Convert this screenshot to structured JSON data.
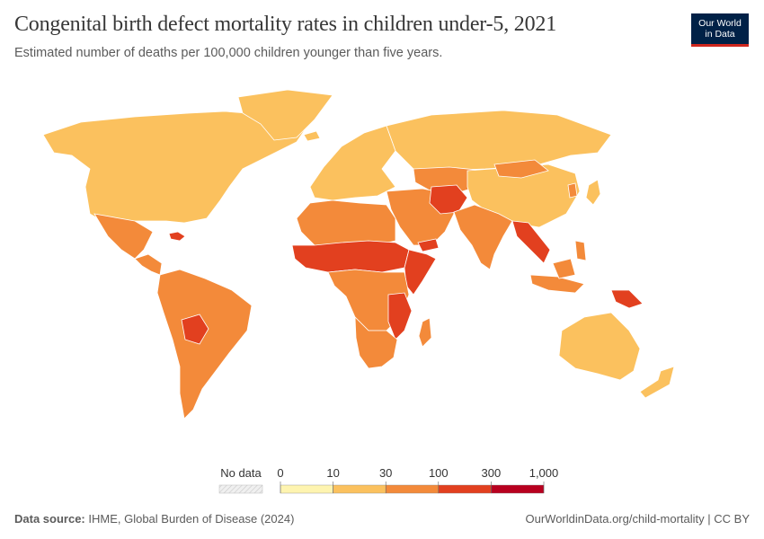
{
  "header": {
    "title": "Congenital birth defect mortality rates in children under-5, 2021",
    "subtitle": "Estimated number of deaths per 100,000 children younger than five years."
  },
  "logo": {
    "line1": "Our World",
    "line2": "in Data"
  },
  "legend": {
    "no_data_label": "No data",
    "ticks": [
      "0",
      "10",
      "30",
      "100",
      "300",
      "1,000"
    ],
    "bins": [
      {
        "from": 0,
        "to": 10,
        "color": "#fef4b0"
      },
      {
        "from": 10,
        "to": 30,
        "color": "#fbc15e"
      },
      {
        "from": 30,
        "to": 100,
        "color": "#f38a3a"
      },
      {
        "from": 100,
        "to": 300,
        "color": "#e2401f"
      },
      {
        "from": 300,
        "to": 1000,
        "color": "#b8001f"
      }
    ]
  },
  "colors": {
    "ocean": "#ffffff",
    "border": "#ffffff",
    "bin_10_30": "#fbc15e",
    "bin_30_100": "#f38a3a",
    "bin_100_300": "#e2401f"
  },
  "footer": {
    "source_label": "Data source:",
    "source_text": "IHME, Global Burden of Disease (2024)",
    "url": "OurWorldinData.org/child-mortality | CC BY"
  }
}
